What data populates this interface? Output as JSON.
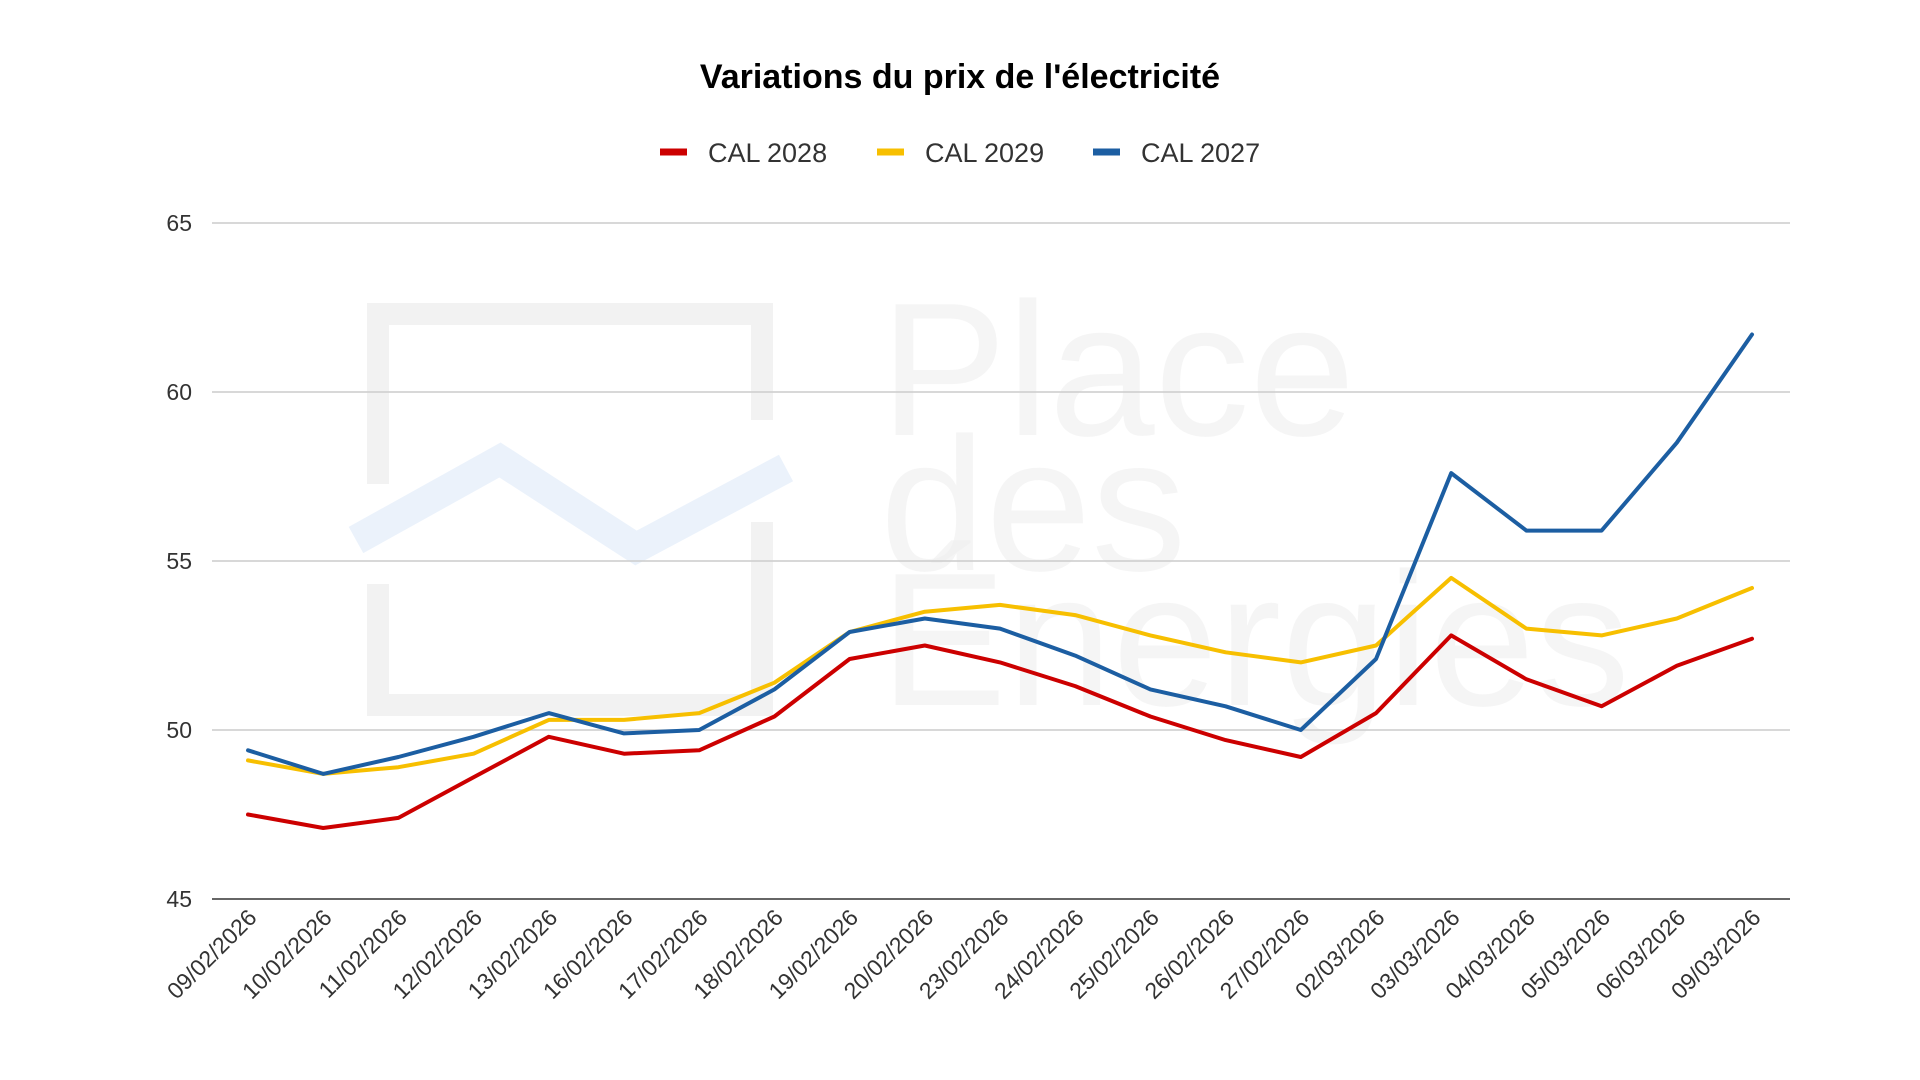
{
  "watermark": {
    "lines": [
      "Place",
      "des",
      "Énergies"
    ]
  },
  "chart_data": {
    "type": "line",
    "title": "Variations du prix de l'électricité",
    "xlabel": "",
    "ylabel": "",
    "ylim": [
      45,
      65
    ],
    "yticks": [
      "45",
      "50",
      "55",
      "60",
      "65"
    ],
    "grid": true,
    "legend_position": "top-center",
    "categories": [
      "09/02/2026",
      "10/02/2026",
      "11/02/2026",
      "12/02/2026",
      "13/02/2026",
      "16/02/2026",
      "17/02/2026",
      "18/02/2026",
      "19/02/2026",
      "20/02/2026",
      "23/02/2026",
      "24/02/2026",
      "25/02/2026",
      "26/02/2026",
      "27/02/2026",
      "02/03/2026",
      "03/03/2026",
      "04/03/2026",
      "05/03/2026",
      "06/03/2026",
      "09/03/2026"
    ],
    "series": [
      {
        "name": "CAL 2028",
        "color": "#cc0000",
        "values": [
          47.5,
          47.1,
          47.4,
          48.6,
          49.8,
          49.3,
          49.4,
          50.4,
          52.1,
          52.5,
          52.0,
          51.3,
          50.4,
          49.7,
          49.2,
          50.5,
          52.8,
          51.5,
          50.7,
          51.9,
          52.7
        ]
      },
      {
        "name": "CAL 2029",
        "color": "#f7bf00",
        "values": [
          49.1,
          48.7,
          48.9,
          49.3,
          50.3,
          50.3,
          50.5,
          51.4,
          52.9,
          53.5,
          53.7,
          53.4,
          52.8,
          52.3,
          52.0,
          52.5,
          54.5,
          53.0,
          52.8,
          53.3,
          54.2
        ]
      },
      {
        "name": "CAL 2027",
        "color": "#1c5ea2",
        "values": [
          49.4,
          48.7,
          49.2,
          49.8,
          50.5,
          49.9,
          50.0,
          51.2,
          52.9,
          53.3,
          53.0,
          52.2,
          51.2,
          50.7,
          50.0,
          52.1,
          57.6,
          55.9,
          55.9,
          58.5,
          61.7
        ]
      }
    ]
  }
}
